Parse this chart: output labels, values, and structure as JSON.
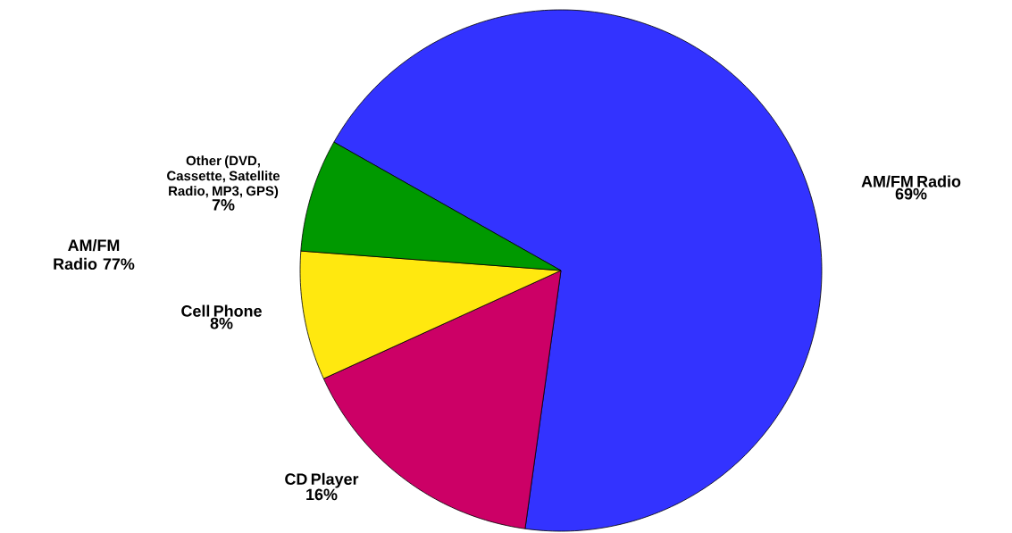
{
  "chart_data": {
    "type": "pie",
    "categories": [
      "AM/FM Radio",
      "CD Player",
      "Cell Phone",
      "Other (DVD, Cassette, Satellite Radio, MP3, GPS)"
    ],
    "values": [
      69,
      16,
      8,
      7
    ],
    "value_labels": [
      "69%",
      "16%",
      "8%",
      "7%"
    ],
    "colors": [
      "#3333ff",
      "#cc0066",
      "#ffe80f",
      "#009900"
    ],
    "annotations": [
      "AM/FM Radio 77%"
    ]
  }
}
